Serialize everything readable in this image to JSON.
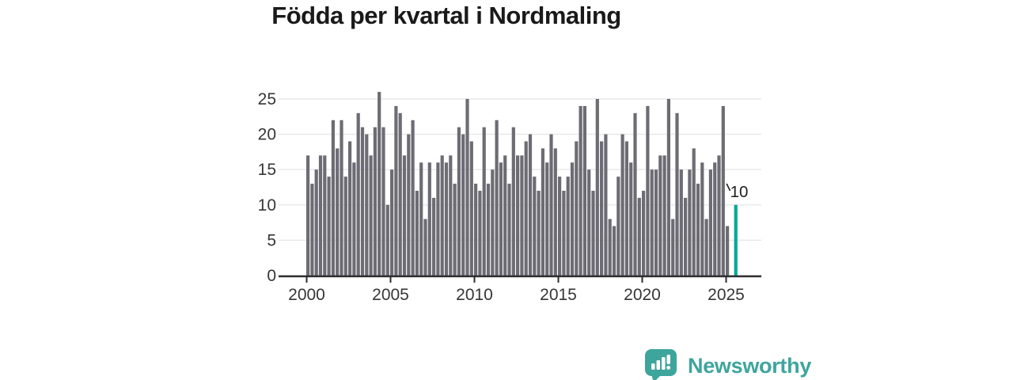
{
  "chart_data": {
    "type": "bar",
    "title": "Födda per kvartal i Nordmaling",
    "xlabel": "",
    "ylabel": "",
    "y_ticks": [
      0,
      5,
      10,
      15,
      20,
      25
    ],
    "ylim": [
      0,
      26
    ],
    "x_tick_labels": [
      "2000",
      "2005",
      "2010",
      "2015",
      "2020",
      "2025"
    ],
    "grid": true,
    "legend": false,
    "categories": [
      "2000Q1",
      "2000Q2",
      "2000Q3",
      "2000Q4",
      "2001Q1",
      "2001Q2",
      "2001Q3",
      "2001Q4",
      "2002Q1",
      "2002Q2",
      "2002Q3",
      "2002Q4",
      "2003Q1",
      "2003Q2",
      "2003Q3",
      "2003Q4",
      "2004Q1",
      "2004Q2",
      "2004Q3",
      "2004Q4",
      "2005Q1",
      "2005Q2",
      "2005Q3",
      "2005Q4",
      "2006Q1",
      "2006Q2",
      "2006Q3",
      "2006Q4",
      "2007Q1",
      "2007Q2",
      "2007Q3",
      "2007Q4",
      "2008Q1",
      "2008Q2",
      "2008Q3",
      "2008Q4",
      "2009Q1",
      "2009Q2",
      "2009Q3",
      "2009Q4",
      "2010Q1",
      "2010Q2",
      "2010Q3",
      "2010Q4",
      "2011Q1",
      "2011Q2",
      "2011Q3",
      "2011Q4",
      "2012Q1",
      "2012Q2",
      "2012Q3",
      "2012Q4",
      "2013Q1",
      "2013Q2",
      "2013Q3",
      "2013Q4",
      "2014Q1",
      "2014Q2",
      "2014Q3",
      "2014Q4",
      "2015Q1",
      "2015Q2",
      "2015Q3",
      "2015Q4",
      "2016Q1",
      "2016Q2",
      "2016Q3",
      "2016Q4",
      "2017Q1",
      "2017Q2",
      "2017Q3",
      "2017Q4",
      "2018Q1",
      "2018Q2",
      "2018Q3",
      "2018Q4",
      "2019Q1",
      "2019Q2",
      "2019Q3",
      "2019Q4",
      "2020Q1",
      "2020Q2",
      "2020Q3",
      "2020Q4",
      "2021Q1",
      "2021Q2",
      "2021Q3",
      "2021Q4",
      "2022Q1",
      "2022Q2",
      "2022Q3",
      "2022Q4",
      "2023Q1",
      "2023Q2",
      "2023Q3",
      "2023Q4",
      "2024Q1",
      "2024Q2",
      "2024Q3",
      "2024Q4",
      "2025Q1",
      "2025Q2",
      "2025Q3"
    ],
    "values": [
      17,
      13,
      15,
      17,
      17,
      14,
      22,
      18,
      22,
      14,
      19,
      16,
      23,
      21,
      20,
      17,
      21,
      26,
      21,
      10,
      15,
      24,
      23,
      17,
      20,
      22,
      12,
      16,
      8,
      16,
      11,
      16,
      17,
      16,
      17,
      13,
      21,
      20,
      25,
      19,
      13,
      12,
      21,
      13,
      15,
      22,
      16,
      17,
      13,
      21,
      17,
      17,
      19,
      20,
      14,
      12,
      18,
      16,
      20,
      18,
      14,
      12,
      14,
      16,
      19,
      24,
      24,
      15,
      12,
      25,
      19,
      20,
      8,
      7,
      14,
      20,
      19,
      16,
      23,
      11,
      12,
      24,
      15,
      15,
      17,
      17,
      25,
      8,
      23,
      15,
      11,
      15,
      18,
      13,
      16,
      8,
      15,
      16,
      17,
      24,
      7,
      null,
      10
    ],
    "highlight_index": 102,
    "annotation": {
      "text": "10"
    },
    "bar_color": "#6d6c74",
    "highlight_color": "#00a79b",
    "grid_color": "#e7e7e9",
    "axis_color": "#2d2d30",
    "label_color": "#363636"
  },
  "logo": {
    "text": "Newsworthy"
  }
}
